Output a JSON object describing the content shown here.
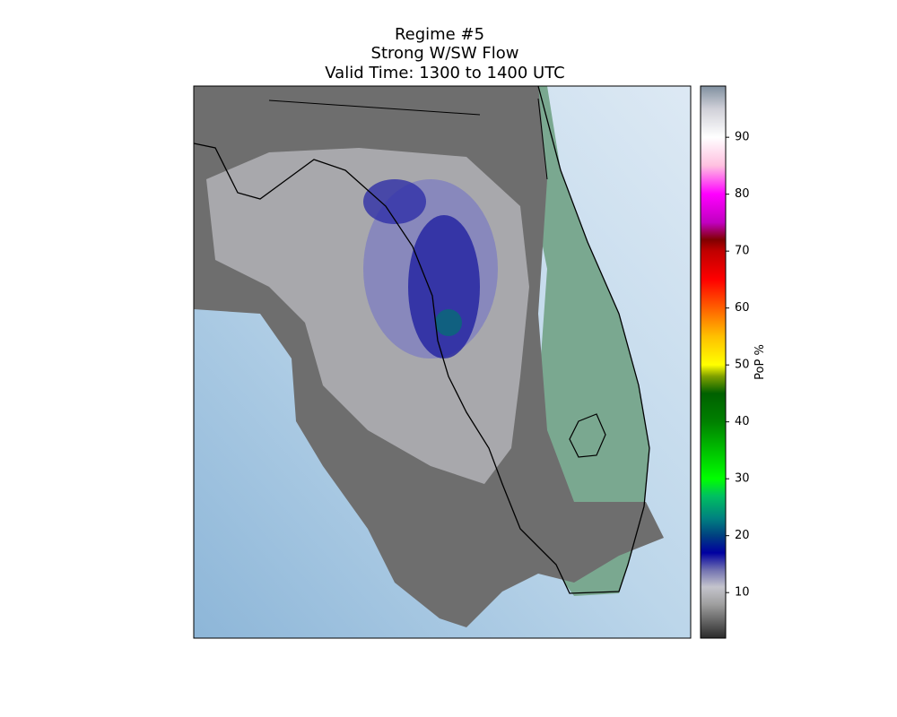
{
  "title": [
    "Regime #5",
    "Strong W/SW Flow",
    "Valid Time: 1300 to 1400 UTC"
  ],
  "colorbar": {
    "label": "PoP %",
    "clim": [
      2,
      99
    ],
    "ticks": [
      10,
      20,
      30,
      40,
      50,
      60,
      70,
      80,
      90
    ],
    "colormap": [
      {
        "value": 2,
        "color": "#2a2a2a"
      },
      {
        "value": 8,
        "color": "#a0a0a0"
      },
      {
        "value": 11,
        "color": "#c4c4cc"
      },
      {
        "value": 14,
        "color": "#7070b0"
      },
      {
        "value": 17,
        "color": "#0000a0"
      },
      {
        "value": 20,
        "color": "#004080"
      },
      {
        "value": 23,
        "color": "#008080"
      },
      {
        "value": 27,
        "color": "#00c060"
      },
      {
        "value": 30,
        "color": "#00ff00"
      },
      {
        "value": 35,
        "color": "#00c000"
      },
      {
        "value": 40,
        "color": "#008000"
      },
      {
        "value": 45,
        "color": "#006000"
      },
      {
        "value": 48,
        "color": "#80a000"
      },
      {
        "value": 50,
        "color": "#ffff00"
      },
      {
        "value": 55,
        "color": "#ffc000"
      },
      {
        "value": 60,
        "color": "#ff6000"
      },
      {
        "value": 65,
        "color": "#ff0000"
      },
      {
        "value": 70,
        "color": "#c00000"
      },
      {
        "value": 72,
        "color": "#800000"
      },
      {
        "value": 75,
        "color": "#c000c0"
      },
      {
        "value": 80,
        "color": "#ff00ff"
      },
      {
        "value": 85,
        "color": "#ffc0e0"
      },
      {
        "value": 90,
        "color": "#ffffff"
      },
      {
        "value": 95,
        "color": "#d0d0d8"
      },
      {
        "value": 99,
        "color": "#8090a0"
      }
    ]
  }
}
